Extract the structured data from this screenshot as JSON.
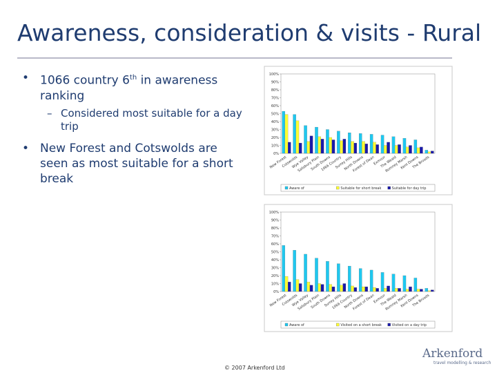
{
  "title": "Awareness, consideration & visits - Rural",
  "bullets": [
    {
      "before": "1066 country 6",
      "sup": "th",
      "after": " in awareness ranking"
    },
    {
      "sub": "Considered most suitable for a day trip"
    },
    {
      "text": "New Forest and Cotswolds are seen as most suitable for a short break"
    }
  ],
  "footer": "© 2007 Arkenford Ltd",
  "logo": {
    "name": "Arkenford",
    "tagline": "travel modelling & research"
  },
  "chart_data": [
    {
      "type": "bar",
      "categories": [
        "New Forest",
        "Cotswolds",
        "Wye Valley",
        "Salisbury Plain",
        "South Downs",
        "1066 Country",
        "Surrey Hills",
        "North Downs",
        "Forest of Dean",
        "Exmoor",
        "The Weald",
        "Romney Marsh",
        "Kent Downs",
        "The Broads"
      ],
      "series": [
        {
          "name": "Aware of",
          "color": "#1ec8f0",
          "values": [
            53,
            49,
            35,
            33,
            30,
            28,
            26,
            25,
            24,
            23,
            21,
            19,
            17,
            4
          ]
        },
        {
          "name": "Suitable for short break",
          "color": "#ffff33",
          "values": [
            49,
            41,
            15,
            21,
            20,
            16,
            15,
            15,
            14,
            10,
            10,
            8,
            7,
            2
          ]
        },
        {
          "name": "Suitable for day trip",
          "color": "#1a1aaa",
          "values": [
            14,
            13,
            22,
            18,
            17,
            18,
            13,
            12,
            11,
            14,
            11,
            10,
            8,
            3
          ]
        }
      ],
      "ylim": [
        0,
        100
      ],
      "yticks": [
        {
          "value": 0,
          "label": "0%"
        },
        {
          "value": 10,
          "label": "10%"
        },
        {
          "value": 20,
          "label": "20%"
        },
        {
          "value": 30,
          "label": "30%"
        },
        {
          "value": 40,
          "label": "40%"
        },
        {
          "value": 50,
          "label": "50%"
        },
        {
          "value": 60,
          "label": "60%"
        },
        {
          "value": 70,
          "label": "70%"
        },
        {
          "value": 80,
          "label": "80%"
        },
        {
          "value": 90,
          "label": "90%"
        },
        {
          "value": 100,
          "label": "100%"
        }
      ],
      "grid": false,
      "legend": "bottom"
    },
    {
      "type": "bar",
      "categories": [
        "New Forest",
        "Cotswolds",
        "Wye Valley",
        "Salisbury Plain",
        "South Downs",
        "Surrey Hills",
        "1066 Country",
        "North Downs",
        "Forest of Dean",
        "Exmoor",
        "The Weald",
        "Romney Marsh",
        "Kent Downs",
        "The Broads"
      ],
      "series": [
        {
          "name": "Aware of",
          "color": "#1ec8f0",
          "values": [
            58,
            52,
            47,
            42,
            38,
            35,
            32,
            29,
            27,
            24,
            22,
            20,
            17,
            4
          ]
        },
        {
          "name": "Visited on a short break",
          "color": "#ffff33",
          "values": [
            19,
            15,
            12,
            10,
            9,
            8,
            7,
            6,
            5,
            4,
            4,
            3,
            3,
            1
          ]
        },
        {
          "name": "Visited on a day trip",
          "color": "#1a1aaa",
          "values": [
            12,
            10,
            8,
            9,
            6,
            10,
            5,
            6,
            4,
            7,
            4,
            6,
            3,
            2
          ]
        }
      ],
      "ylim": [
        0,
        100
      ],
      "yticks": [
        {
          "value": 0,
          "label": "0%"
        },
        {
          "value": 10,
          "label": "10%"
        },
        {
          "value": 20,
          "label": "20%"
        },
        {
          "value": 30,
          "label": "30%"
        },
        {
          "value": 40,
          "label": "40%"
        },
        {
          "value": 50,
          "label": "50%"
        },
        {
          "value": 60,
          "label": "60%"
        },
        {
          "value": 70,
          "label": "70%"
        },
        {
          "value": 80,
          "label": "80%"
        },
        {
          "value": 90,
          "label": "90%"
        },
        {
          "value": 100,
          "label": "100%"
        }
      ],
      "grid": false,
      "legend": "bottom"
    }
  ]
}
